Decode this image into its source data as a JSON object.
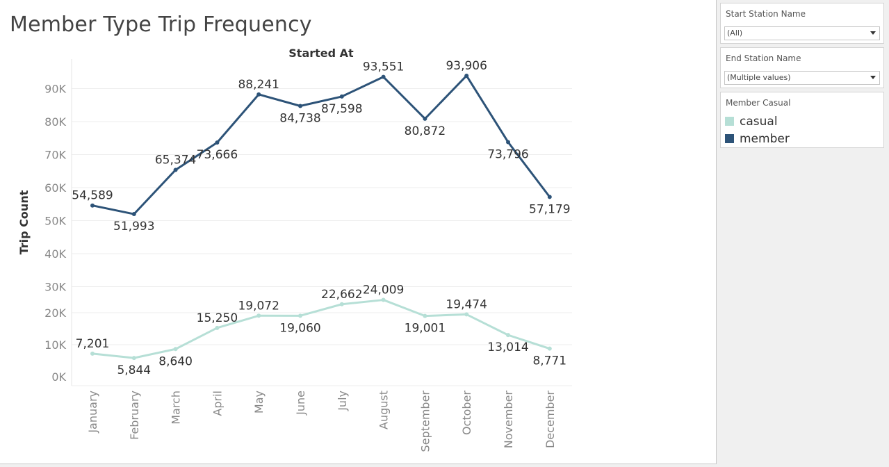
{
  "sheet": {
    "title": "Member Type Trip Frequency"
  },
  "filters": {
    "start_station": {
      "label": "Start Station Name",
      "value": "(All)"
    },
    "end_station": {
      "label": "End Station Name",
      "value": "(Multiple values)"
    }
  },
  "legend": {
    "title": "Member Casual",
    "items": [
      {
        "label": "casual",
        "color": "#b6dfd6"
      },
      {
        "label": "member",
        "color": "#2d5378"
      }
    ]
  },
  "chart_data": {
    "type": "line",
    "title": "Started At",
    "xlabel": "Started At",
    "ylabel": "Trip Count",
    "categories": [
      "January",
      "February",
      "March",
      "April",
      "May",
      "June",
      "July",
      "August",
      "September",
      "October",
      "November",
      "December"
    ],
    "y_ticks": [
      "0K",
      "10K",
      "20K",
      "30K",
      "40K",
      "50K",
      "60K",
      "70K",
      "80K",
      "90K"
    ],
    "ylim": [
      0,
      95000
    ],
    "grid": true,
    "legend_position": "right",
    "series": [
      {
        "name": "member",
        "color": "#2d5378",
        "values": [
          54589,
          51993,
          65374,
          73666,
          88241,
          84738,
          87598,
          93551,
          80872,
          93906,
          73796,
          57179
        ],
        "labels": [
          "54,589",
          "51,993",
          "65,374",
          "73,666",
          "88,241",
          "84,738",
          "87,598",
          "93,551",
          "80,872",
          "93,906",
          "73,796",
          "57,179"
        ]
      },
      {
        "name": "casual",
        "color": "#b6dfd6",
        "values": [
          7201,
          5844,
          8640,
          15250,
          19072,
          19060,
          22662,
          24009,
          19001,
          19474,
          13014,
          8771
        ],
        "labels": [
          "7,201",
          "5,844",
          "8,640",
          "15,250",
          "19,072",
          "19,060",
          "22,662",
          "24,009",
          "19,001",
          "19,474",
          "13,014",
          "8,771"
        ]
      }
    ]
  }
}
